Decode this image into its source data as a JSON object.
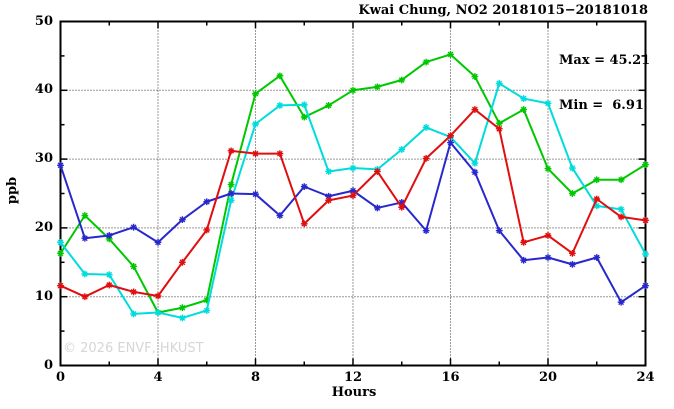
{
  "title": "Kwai Chung, NO2 20181015−20181018",
  "stats": {
    "max_label": "Max = 45.21",
    "min_label": "Min =  6.91"
  },
  "watermark": "© 2026 ENVF, HKUST",
  "axes": {
    "ylabel": "ppb",
    "xlabel": "Hours"
  },
  "colors": {
    "frame": "#000000",
    "grid": "#333333",
    "watermark": "#d6d6d6"
  },
  "chart_data": {
    "type": "line",
    "title": "Kwai Chung, NO2 20181015−20181018",
    "xlabel": "Hours",
    "ylabel": "ppb",
    "xlim": [
      0,
      24
    ],
    "ylim": [
      0,
      50
    ],
    "x_major_ticks": [
      0,
      4,
      8,
      12,
      16,
      20,
      24
    ],
    "x_minor_ticks": [
      2,
      6,
      10,
      14,
      18,
      22
    ],
    "y_major_ticks": [
      0,
      10,
      20,
      30,
      40,
      50
    ],
    "y_minor_ticks": [
      5,
      15,
      25,
      35,
      45
    ],
    "grid_x": [
      4,
      8,
      12,
      16,
      20
    ],
    "grid_y": [
      10,
      20,
      30,
      40
    ],
    "annotations": {
      "max": 45.21,
      "min": 6.91
    },
    "legend_position": "none",
    "grid": "dotted",
    "marker": "asterisk",
    "x": [
      0,
      1,
      2,
      3,
      4,
      5,
      6,
      7,
      8,
      9,
      10,
      11,
      12,
      13,
      14,
      15,
      16,
      17,
      18,
      19,
      20,
      21,
      22,
      23,
      24
    ],
    "series": [
      {
        "name": "green",
        "color": "#00c800",
        "values": [
          16.3,
          21.8,
          18.4,
          14.4,
          7.7,
          8.4,
          9.5,
          26.3,
          39.5,
          42.1,
          36.1,
          37.8,
          40.0,
          40.5,
          41.5,
          44.1,
          45.21,
          42.0,
          35.2,
          37.2,
          28.6,
          25.0,
          27.0,
          27.0,
          29.2
        ]
      },
      {
        "name": "cyan",
        "color": "#00dcdc",
        "values": [
          17.9,
          13.3,
          13.2,
          7.5,
          7.7,
          6.91,
          8.0,
          24.0,
          35.1,
          37.8,
          37.9,
          28.2,
          28.7,
          28.5,
          31.4,
          34.6,
          33.2,
          29.4,
          41.0,
          38.8,
          38.1,
          28.7,
          23.2,
          22.7,
          16.2
        ]
      },
      {
        "name": "blue",
        "color": "#2828cd",
        "values": [
          29.1,
          18.5,
          18.9,
          20.1,
          17.9,
          21.2,
          23.8,
          25.0,
          24.9,
          21.8,
          26.0,
          24.6,
          25.4,
          22.9,
          23.7,
          19.6,
          32.4,
          28.1,
          19.6,
          15.3,
          15.7,
          14.7,
          15.7,
          9.2,
          11.6
        ]
      },
      {
        "name": "red",
        "color": "#e00e0e",
        "values": [
          11.6,
          10.0,
          11.7,
          10.7,
          10.1,
          15.0,
          19.7,
          31.2,
          30.8,
          30.8,
          20.6,
          24.0,
          24.7,
          28.2,
          23.0,
          30.1,
          33.4,
          37.2,
          34.4,
          17.9,
          18.9,
          16.3,
          24.2,
          21.6,
          21.1
        ]
      }
    ]
  }
}
